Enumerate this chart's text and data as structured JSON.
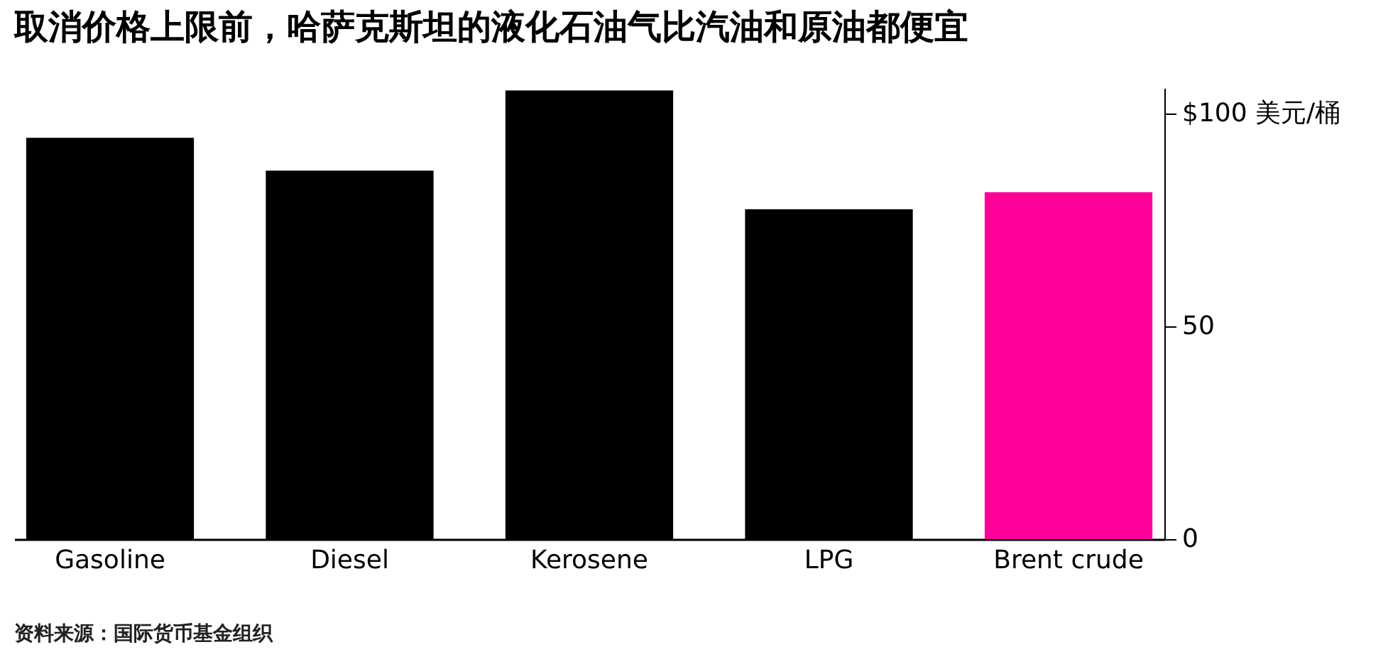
{
  "chart_data": {
    "type": "bar",
    "title": "取消价格上限前，哈萨克斯坦的液化石油气比汽油和原油都便宜",
    "categories": [
      "Gasoline",
      "Diesel",
      "Kerosene",
      "LPG",
      "Brent crude"
    ],
    "values": [
      94.3,
      86.6,
      105.4,
      77.5,
      81.5
    ],
    "colors": [
      "#000000",
      "#000000",
      "#000000",
      "#000000",
      "#ff0099"
    ],
    "ylim": [
      0,
      106
    ],
    "yticks": [
      0,
      50,
      {
        "value": 100,
        "label": "$100 美元/桶"
      }
    ],
    "grid": false,
    "annotations": [
      "资料来源：国际货币基金组织"
    ]
  }
}
